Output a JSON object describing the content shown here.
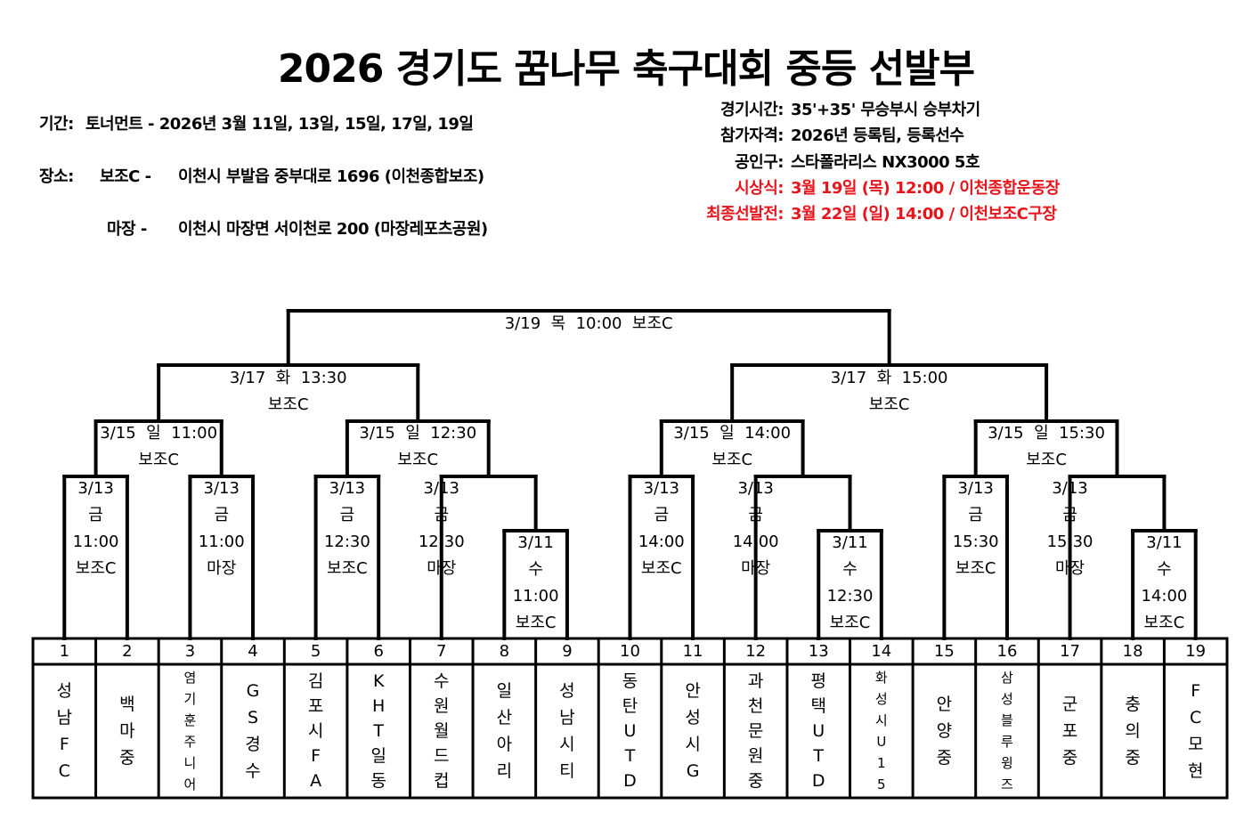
{
  "title": "2026 경기도 꿈나무 축구대회 중등 선발부",
  "info_left": {
    "period_label": "기간:",
    "period_value": "토너먼트 - 2026년 3월 11일, 13일, 15일, 17일, 19일",
    "venue_label": "장소:",
    "venue1_name": "보조C -",
    "venue1_addr": "이천시 부발읍 중부대로 1696 (이천종합보조)",
    "venue2_name": "마장 -",
    "venue2_addr": "이천시 마장면 서이천로 200 (마장레포츠공원)"
  },
  "info_right": [
    {
      "label": "경기시간:",
      "value": "35'+35' 무승부시 승부차기",
      "color": "#000000"
    },
    {
      "label": "참가자격:",
      "value": "2026년 등록팀, 등록선수",
      "color": "#000000"
    },
    {
      "label": "공인구:",
      "value": "스타폴라리스 NX3000 5호",
      "color": "#000000"
    },
    {
      "label": "시상식:",
      "value": "3월 19일 (목) 12:00 / 이천종합운동장",
      "color": "#e8141b"
    },
    {
      "label": "최종선발전:",
      "value": "3월 22일 (일) 14:00 / 이천보조C구장",
      "color": "#e8141b"
    }
  ],
  "teams": [
    {
      "no": "1",
      "name": "성남FC"
    },
    {
      "no": "2",
      "name": "백마중"
    },
    {
      "no": "3",
      "name": "염기훈주니어"
    },
    {
      "no": "4",
      "name": "GS경수"
    },
    {
      "no": "5",
      "name": "김포시FA"
    },
    {
      "no": "6",
      "name": "KHT일동"
    },
    {
      "no": "7",
      "name": "수원월드컵"
    },
    {
      "no": "8",
      "name": "일산아리"
    },
    {
      "no": "9",
      "name": "성남시티"
    },
    {
      "no": "10",
      "name": "동탄UTD"
    },
    {
      "no": "11",
      "name": "안성시G"
    },
    {
      "no": "12",
      "name": "과천문원중"
    },
    {
      "no": "13",
      "name": "평택UTD"
    },
    {
      "no": "14",
      "name": "화성시U15"
    },
    {
      "no": "15",
      "name": "안양중"
    },
    {
      "no": "16",
      "name": "삼성블루윙즈"
    },
    {
      "no": "17",
      "name": "군포중"
    },
    {
      "no": "18",
      "name": "충의중"
    },
    {
      "no": "19",
      "name": "FC모현"
    }
  ],
  "matches": {
    "r0_8_9": [
      "3/11",
      "수",
      "11:00",
      "보조C"
    ],
    "r0_13_14": [
      "3/11",
      "수",
      "12:30",
      "보조C"
    ],
    "r0_18_19": [
      "3/11",
      "수",
      "14:00",
      "보조C"
    ],
    "r1_1_2": [
      "3/13",
      "금",
      "11:00",
      "보조C"
    ],
    "r1_3_4": [
      "3/13",
      "금",
      "11:00",
      "마장"
    ],
    "r1_5_6": [
      "3/13",
      "금",
      "12:30",
      "보조C"
    ],
    "r1_7_w": [
      "3/13",
      "금",
      "12:30",
      "마장"
    ],
    "r1_10_11": [
      "3/13",
      "금",
      "14:00",
      "보조C"
    ],
    "r1_12_w": [
      "3/13",
      "금",
      "14:00",
      "마장"
    ],
    "r1_15_16": [
      "3/13",
      "금",
      "15:30",
      "보조C"
    ],
    "r1_17_w": [
      "3/13",
      "금",
      "15:30",
      "마장"
    ],
    "qf1": [
      "3/15  일  11:00",
      "보조C"
    ],
    "qf2": [
      "3/15  일  12:30",
      "보조C"
    ],
    "qf3": [
      "3/15  일  14:00",
      "보조C"
    ],
    "qf4": [
      "3/15  일  15:30",
      "보조C"
    ],
    "sf1": [
      "3/17  화  13:30",
      "보조C"
    ],
    "sf2": [
      "3/17  화  15:00",
      "보조C"
    ],
    "final": [
      "3/19  목  10:00  보조C"
    ]
  }
}
